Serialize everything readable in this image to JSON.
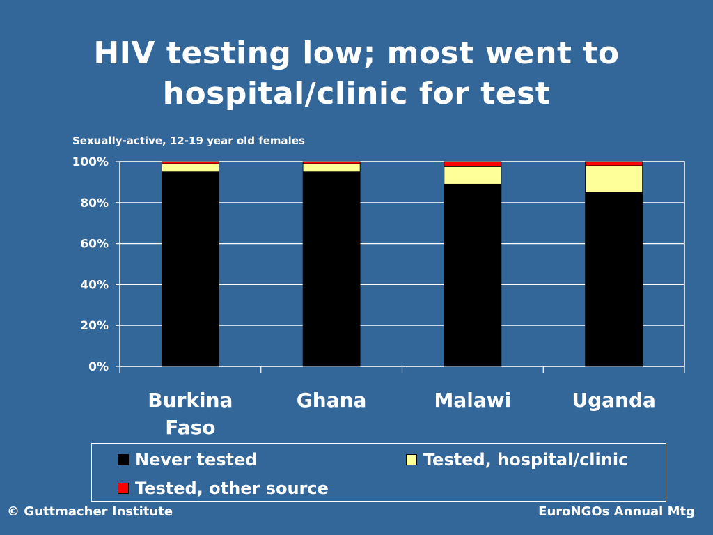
{
  "slide": {
    "title_line1": "HIV testing low; most went to",
    "title_line2": "hospital/clinic for test",
    "footer_left": "© Guttmacher Institute",
    "footer_right": "EuroNGOs Annual Mtg"
  },
  "chart_data": {
    "type": "bar",
    "stacked": true,
    "title": "",
    "subtitle": "Sexually-active, 12-19 year old females",
    "xlabel": "",
    "ylabel": "",
    "ylim": [
      0,
      100
    ],
    "yticks": [
      "0%",
      "20%",
      "40%",
      "60%",
      "80%",
      "100%"
    ],
    "grid": true,
    "legend_position": "bottom",
    "categories": [
      [
        "Burkina",
        "Faso"
      ],
      [
        "Ghana"
      ],
      [
        "Malawi"
      ],
      [
        "Uganda"
      ]
    ],
    "series": [
      {
        "name": "Never tested",
        "color": "#000000",
        "values": [
          95,
          95,
          89,
          85
        ]
      },
      {
        "name": "Tested, hospital/clinic",
        "color": "#ffff99",
        "values": [
          4,
          4,
          8.5,
          13
        ]
      },
      {
        "name": "Tested, other source",
        "color": "#ff0000",
        "values": [
          1,
          1,
          2.5,
          2
        ]
      }
    ]
  }
}
